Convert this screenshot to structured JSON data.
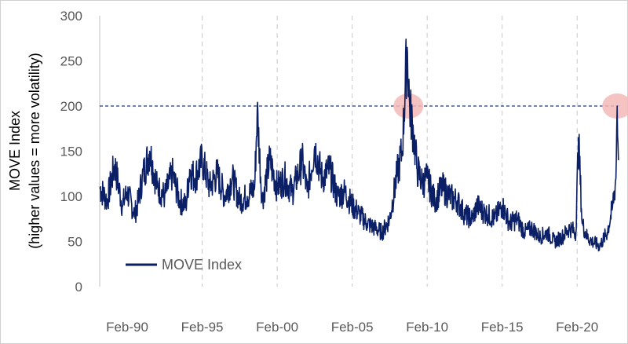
{
  "chart_data": {
    "type": "line",
    "title": "",
    "xlabel": "",
    "ylabel": "MOVE Index",
    "ylabel_sub": "(higher values = more volatility)",
    "ylim": [
      0,
      300
    ],
    "yticks": [
      "0",
      "50",
      "100",
      "150",
      "200",
      "250",
      "300"
    ],
    "xticks": [
      "Feb-90",
      "Feb-95",
      "Feb-00",
      "Feb-05",
      "Feb-10",
      "Feb-15",
      "Feb-20"
    ],
    "legend": {
      "position": "bottom-left",
      "label": "MOVE Index"
    },
    "reference_line": {
      "y": 200,
      "style": "dashed",
      "color": "#1f3a7a"
    },
    "highlights": [
      {
        "x": "2008-11",
        "y": 200,
        "color": "#f4b8b8"
      },
      {
        "x": "2022-10",
        "y": 200,
        "color": "#f4b8b8"
      }
    ],
    "series": [
      {
        "name": "MOVE Index",
        "color": "#0b1f66",
        "x": [
          "1988-04",
          "1988-10",
          "1989-04",
          "1989-10",
          "1990-02",
          "1990-08",
          "1990-11",
          "1991-02",
          "1991-08",
          "1992-02",
          "1992-08",
          "1993-02",
          "1993-08",
          "1994-01",
          "1994-04",
          "1994-08",
          "1995-02",
          "1995-08",
          "1996-02",
          "1996-08",
          "1997-02",
          "1997-08",
          "1998-02",
          "1998-08",
          "1998-10",
          "1999-02",
          "1999-08",
          "2000-02",
          "2000-08",
          "2001-02",
          "2001-08",
          "2001-10",
          "2002-02",
          "2002-08",
          "2003-02",
          "2003-08",
          "2004-02",
          "2004-08",
          "2005-02",
          "2005-08",
          "2006-02",
          "2006-08",
          "2007-02",
          "2007-08",
          "2008-02",
          "2008-06",
          "2008-10",
          "2008-12",
          "2009-03",
          "2009-06",
          "2009-10",
          "2010-02",
          "2010-08",
          "2011-02",
          "2011-08",
          "2012-02",
          "2012-08",
          "2013-02",
          "2013-06",
          "2013-09",
          "2014-02",
          "2014-08",
          "2015-02",
          "2015-08",
          "2016-02",
          "2016-08",
          "2017-02",
          "2017-08",
          "2018-02",
          "2018-08",
          "2019-02",
          "2019-08",
          "2020-01",
          "2020-03",
          "2020-06",
          "2020-10",
          "2021-02",
          "2021-08",
          "2022-02",
          "2022-06",
          "2022-09",
          "2022-10",
          "2022-11"
        ],
        "values": [
          110,
          95,
          135,
          90,
          105,
          80,
          95,
          120,
          150,
          110,
          100,
          125,
          95,
          90,
          130,
          120,
          140,
          110,
          125,
          100,
          120,
          95,
          100,
          110,
          195,
          95,
          140,
          110,
          120,
          105,
          130,
          140,
          105,
          155,
          120,
          130,
          100,
          105,
          90,
          80,
          70,
          65,
          60,
          75,
          125,
          150,
          265,
          200,
          170,
          130,
          115,
          120,
          95,
          110,
          100,
          95,
          80,
          75,
          90,
          85,
          80,
          75,
          90,
          70,
          75,
          60,
          65,
          55,
          60,
          50,
          55,
          65,
          60,
          165,
          70,
          55,
          50,
          45,
          60,
          85,
          120,
          200,
          140
        ]
      }
    ]
  }
}
